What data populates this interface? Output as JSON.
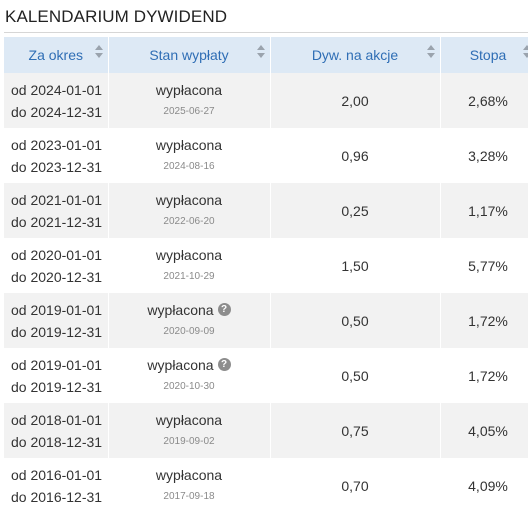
{
  "title": "KALENDARIUM DYWIDEND",
  "columns": {
    "period": "Za okres",
    "status": "Stan wypłaty",
    "dividend": "Dyw. na akcje",
    "yield": "Stopa"
  },
  "rows": [
    {
      "from": "od 2024-01-01",
      "to": "do 2024-12-31",
      "status": "wypłacona",
      "status_date": "2025-06-27",
      "help": false,
      "dividend": "2,00",
      "yield": "2,68%"
    },
    {
      "from": "od 2023-01-01",
      "to": "do 2023-12-31",
      "status": "wypłacona",
      "status_date": "2024-08-16",
      "help": false,
      "dividend": "0,96",
      "yield": "3,28%"
    },
    {
      "from": "od 2021-01-01",
      "to": "do 2021-12-31",
      "status": "wypłacona",
      "status_date": "2022-06-20",
      "help": false,
      "dividend": "0,25",
      "yield": "1,17%"
    },
    {
      "from": "od 2020-01-01",
      "to": "do 2020-12-31",
      "status": "wypłacona",
      "status_date": "2021-10-29",
      "help": false,
      "dividend": "1,50",
      "yield": "5,77%"
    },
    {
      "from": "od 2019-01-01",
      "to": "do 2019-12-31",
      "status": "wypłacona",
      "status_date": "2020-09-09",
      "help": true,
      "dividend": "0,50",
      "yield": "1,72%"
    },
    {
      "from": "od 2019-01-01",
      "to": "do 2019-12-31",
      "status": "wypłacona",
      "status_date": "2020-10-30",
      "help": true,
      "dividend": "0,50",
      "yield": "1,72%"
    },
    {
      "from": "od 2018-01-01",
      "to": "do 2018-12-31",
      "status": "wypłacona",
      "status_date": "2019-09-02",
      "help": false,
      "dividend": "0,75",
      "yield": "4,05%"
    },
    {
      "from": "od 2016-01-01",
      "to": "do 2016-12-31",
      "status": "wypłacona",
      "status_date": "2017-09-18",
      "help": false,
      "dividend": "0,70",
      "yield": "4,09%"
    }
  ],
  "icons": {
    "sort": "sort-icon",
    "help": "question-circle-icon",
    "help_glyph": "?"
  }
}
